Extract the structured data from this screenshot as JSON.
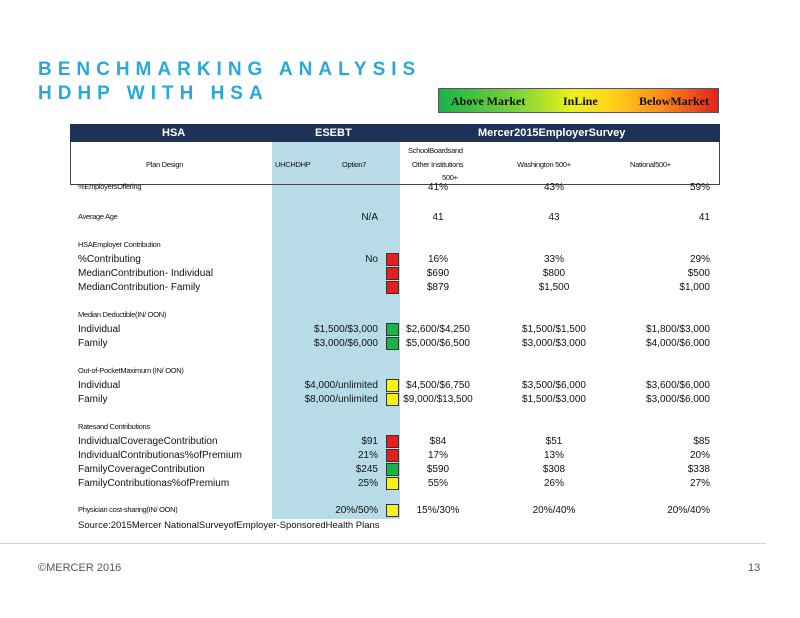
{
  "title": {
    "line1": "BENCHMARKING ANALYSIS",
    "line2": "HDHP WITH HSA"
  },
  "legend": {
    "above": "Above Market",
    "inline": "InLine",
    "below": "BelowMarket"
  },
  "colors": {
    "header_bg": "#1d3256",
    "esebt_bg": "#b7dce8",
    "title": "#2aa8d8",
    "red": "#e3201c",
    "green": "#19b34a",
    "yellow": "#f8f00e"
  },
  "header": {
    "hsa": "HSA",
    "esebt": "ESEBT",
    "survey": "Mercer2015EmployerSurvey"
  },
  "subheader": {
    "plan_design": "Plan Design",
    "uhc": "UHCHDHP",
    "option": "Option7",
    "school1": "SchoolBoardsand",
    "school2": "Other Institutions",
    "school3": "500+",
    "washington": "Washington 500+",
    "national": "National500+"
  },
  "rows": [
    {
      "label": "%EmployersOffering",
      "small": true,
      "esebt": "",
      "status": "",
      "school": "41%",
      "washington": "43%",
      "national": "59%"
    },
    {
      "label": "Average Age",
      "small": true,
      "esebt": "N/A",
      "status": "",
      "school": "41",
      "washington": "43",
      "national": "41"
    },
    {
      "label": "HSAEmployer Contribution",
      "small": true,
      "esebt": "",
      "status": "",
      "school": "",
      "washington": "",
      "national": ""
    },
    {
      "label": "%Contributing",
      "small": false,
      "esebt": "No",
      "status": "red",
      "school": "16%",
      "washington": "33%",
      "national": "29%"
    },
    {
      "label": "MedianContribution- Individual",
      "small": false,
      "esebt": "",
      "status": "red",
      "school": "$690",
      "washington": "$800",
      "national": "$500"
    },
    {
      "label": "MedianContribution- Family",
      "small": false,
      "esebt": "",
      "status": "red",
      "school": "$879",
      "washington": "$1,500",
      "national": "$1,000"
    },
    {
      "label": "Median Deductible(IN/ OON)",
      "small": true,
      "esebt": "",
      "status": "",
      "school": "",
      "washington": "",
      "national": ""
    },
    {
      "label": "Individual",
      "small": false,
      "esebt": "$1,500/$3,000",
      "status": "green",
      "school": "$2,600/$4,250",
      "washington": "$1,500/$1,500",
      "national": "$1,800/$3,000"
    },
    {
      "label": "Family",
      "small": false,
      "esebt": "$3,000/$6,000",
      "status": "green",
      "school": "$5,000/$6,500",
      "washington": "$3,000/$3,000",
      "national": "$4,000/$6,000"
    },
    {
      "label": "Out-of-PocketMaximum (IN/ OON)",
      "small": true,
      "esebt": "",
      "status": "",
      "school": "",
      "washington": "",
      "national": ""
    },
    {
      "label": "Individual",
      "small": false,
      "esebt": "$4,000/unlimited",
      "status": "yellow",
      "school": "$4,500/$6,750",
      "washington": "$3,500/$6,000",
      "national": "$3,600/$6,000"
    },
    {
      "label": "Family",
      "small": false,
      "esebt": "$8,000/unlimited",
      "status": "yellow",
      "school": "$9,000/$13,500",
      "washington": "$1,500/$3,000",
      "national": "$3,000/$6,000"
    },
    {
      "label": "Ratesand Contributions",
      "small": true,
      "esebt": "",
      "status": "",
      "school": "",
      "washington": "",
      "national": ""
    },
    {
      "label": "IndividualCoverageContribution",
      "small": false,
      "esebt": "$91",
      "status": "red",
      "school": "$84",
      "washington": "$51",
      "national": "$85"
    },
    {
      "label": "IndividualContributionas%ofPremium",
      "small": false,
      "esebt": "21%",
      "status": "red",
      "school": "17%",
      "washington": "13%",
      "national": "20%"
    },
    {
      "label": "FamilyCoverageContribution",
      "small": false,
      "esebt": "$245",
      "status": "green",
      "school": "$590",
      "washington": "$308",
      "national": "$338"
    },
    {
      "label": "FamilyContributionas%ofPremium",
      "small": false,
      "esebt": "25%",
      "status": "yellow",
      "school": "55%",
      "washington": "26%",
      "national": "27%"
    },
    {
      "label": "Physician cost-sharing(IN/ OON)",
      "small": true,
      "esebt": "20%/50%",
      "status": "yellow",
      "school": "15%/30%",
      "washington": "20%/40%",
      "national": "20%/40%"
    }
  ],
  "source": "Source:2015Mercer NationalSurveyofEmployer-SponsoredHealth Plans",
  "footer": {
    "copyright": "©MERCER 2016",
    "page": "13"
  }
}
